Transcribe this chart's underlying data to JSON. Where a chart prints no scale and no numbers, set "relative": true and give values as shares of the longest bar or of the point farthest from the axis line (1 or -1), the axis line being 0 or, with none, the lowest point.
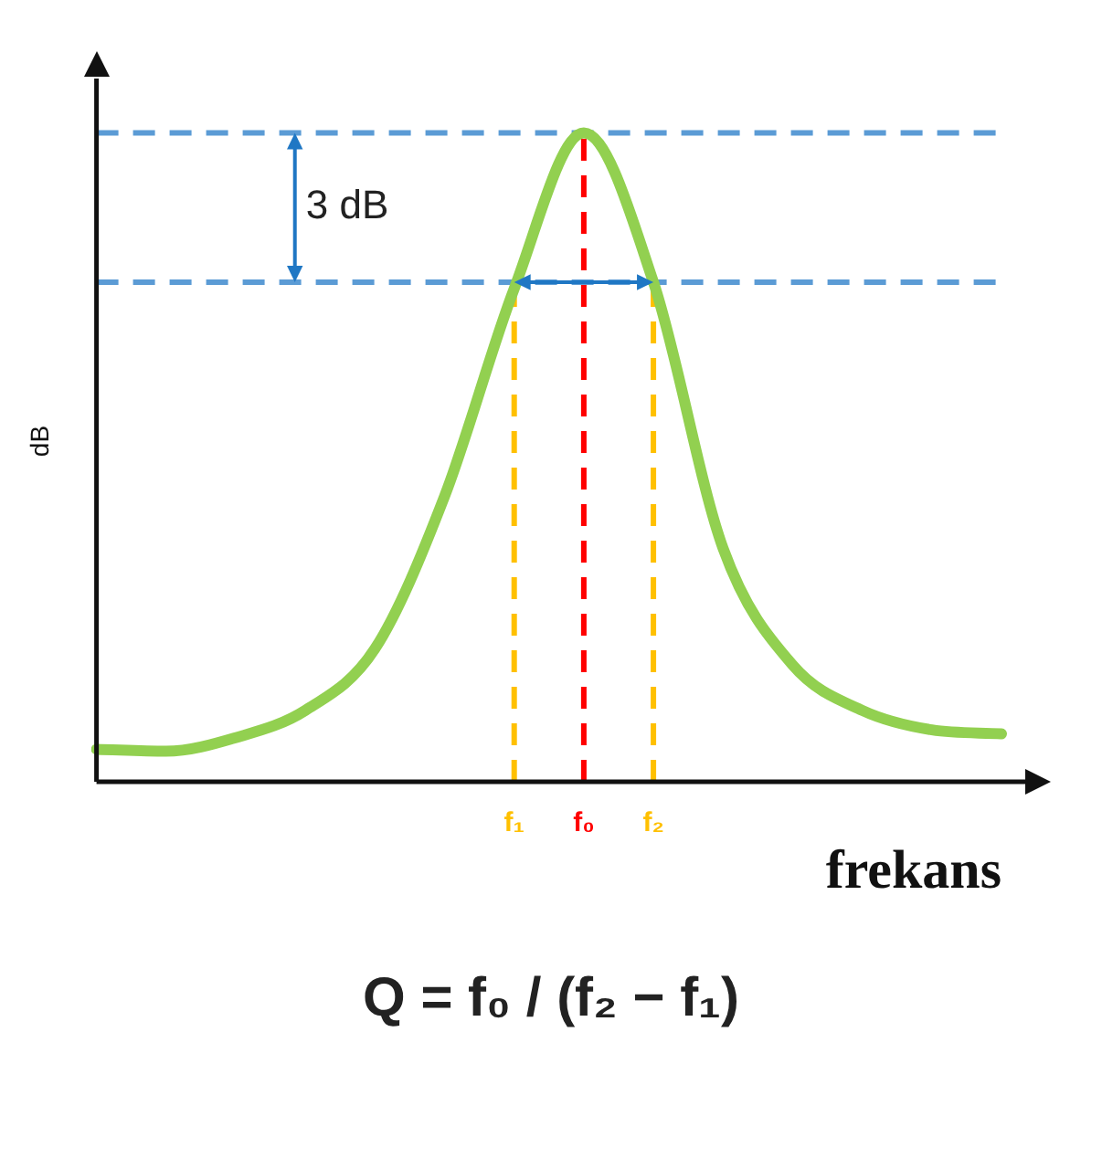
{
  "chart_data": {
    "type": "line",
    "relative": true,
    "xlabel": "frekans",
    "ylabel": "dB",
    "categories": [
      null,
      null,
      null,
      null,
      null,
      null,
      "f₁",
      "f₀",
      "f₂",
      null,
      null,
      null,
      null,
      null
    ],
    "series": [
      {
        "color": "#92d050",
        "values": [
          0.05,
          0.047,
          0.068,
          0.11,
          0.205,
          0.44,
          0.76,
          1,
          0.77,
          0.36,
          0.18,
          0.11,
          0.08,
          0.074
        ]
      }
    ],
    "ref_lines": [
      {
        "axis": "y",
        "value": 1,
        "color": "#5b9bd5",
        "line_style": "dashed"
      },
      {
        "axis": "y",
        "value": 0.77,
        "color": "#5b9bd5",
        "line_style": "dashed"
      },
      {
        "axis": "x",
        "value": "f₁",
        "color": "#ffc000",
        "line_style": "dashed"
      },
      {
        "axis": "x",
        "value": "f₀",
        "color": "#ff0000",
        "line_style": "dashed"
      },
      {
        "axis": "x",
        "value": "f₂",
        "color": "#ffc000",
        "line_style": "dashed"
      }
    ],
    "annotations": [
      "3 dB",
      "Q = f₀ / (f₂ − f₁)"
    ],
    "tick_labels": "x",
    "grid": false,
    "legend": false,
    "marker": "none",
    "line_style": "solid"
  }
}
